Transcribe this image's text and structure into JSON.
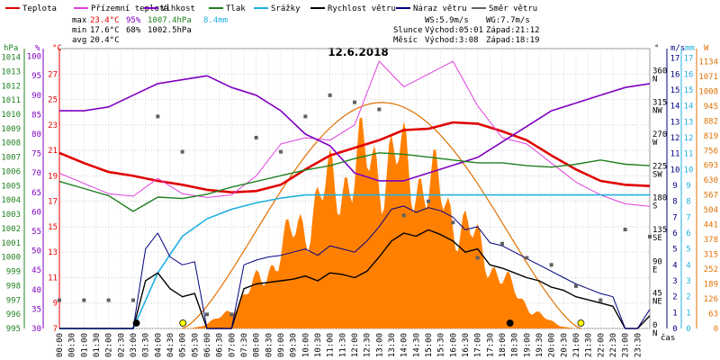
{
  "chart_data": {
    "type": "line",
    "title": "12.6.2018",
    "x_axis_label": "čas",
    "x_ticks": [
      "00:00",
      "00:30",
      "01:00",
      "01:30",
      "02:00",
      "02:30",
      "03:00",
      "03:30",
      "04:00",
      "04:30",
      "05:00",
      "05:30",
      "06:00",
      "06:30",
      "07:00",
      "07:30",
      "08:00",
      "08:30",
      "09:00",
      "09:30",
      "10:00",
      "10:30",
      "11:00",
      "11:30",
      "12:00",
      "12:30",
      "13:00",
      "13:30",
      "14:00",
      "14:30",
      "15:00",
      "15:30",
      "16:00",
      "16:30",
      "17:00",
      "17:30",
      "18:00",
      "18:30",
      "19:00",
      "19:30",
      "20:00",
      "20:30",
      "21:00",
      "21:30",
      "22:00",
      "22:30",
      "23:00",
      "23:30"
    ],
    "legend": [
      {
        "name": "Teplota",
        "color": "#e00000"
      },
      {
        "name": "Přízemní teplota",
        "color": "#e040e0"
      },
      {
        "name": "Vlhkost",
        "color": "#8000c0"
      },
      {
        "name": "Tlak",
        "color": "#208020"
      },
      {
        "name": "Srážky",
        "color": "#20b0e0"
      },
      {
        "name": "Rychlost větru",
        "color": "#000000"
      },
      {
        "name": "Náraz větru",
        "color": "#000080"
      },
      {
        "name": "Směr větru",
        "color": "#606060"
      }
    ],
    "stats": {
      "max_label": "max",
      "min_label": "min",
      "avg_label": "avg",
      "max_temp": "23.4°C",
      "max_hum": "95%",
      "max_press": "1007.4hPa",
      "precip": "8.4mm",
      "min_temp": "17.6°C",
      "min_hum": "68%",
      "min_press": "1002.5hPa",
      "avg_temp": "20.4°C"
    },
    "info": {
      "ws": "WS:5.9m/s",
      "wg": "WG:7.7m/s",
      "sun_label": "Slunce",
      "sun_rise": "Východ:05:01",
      "sun_set": "Západ:21:12",
      "moon_label": "Měsíc",
      "moon_rise": "Východ:3:08",
      "moon_set": "Západ:18:19"
    },
    "axes": {
      "hpa": {
        "label": "hPa",
        "ticks": [
          995,
          996,
          997,
          998,
          999,
          1000,
          1001,
          1002,
          1003,
          1004,
          1005,
          1006,
          1007,
          1008,
          1009,
          1010,
          1011,
          1012,
          1013,
          1014
        ]
      },
      "pct": {
        "label": "%",
        "ticks": [
          30,
          35,
          40,
          45,
          50,
          55,
          60,
          65,
          70,
          75,
          80,
          85,
          90,
          95,
          100
        ]
      },
      "temp": {
        "label": "°C",
        "ticks": [
          7,
          9,
          11,
          13,
          15,
          17,
          19,
          21,
          23,
          25,
          27
        ]
      },
      "deg": {
        "label": "°",
        "ticks": [
          "0",
          "45",
          "90",
          "135",
          "180",
          "225",
          "270",
          "315",
          "360"
        ],
        "dirs": [
          "N",
          "NE",
          "E",
          "SE",
          "S",
          "SW",
          "W",
          "NW",
          "N"
        ]
      },
      "ms": {
        "label": "m/s",
        "ticks": [
          0,
          1,
          2,
          3,
          4,
          5,
          6,
          7,
          8,
          9,
          10,
          11,
          12,
          13,
          14,
          15,
          16,
          17
        ]
      },
      "mm": {
        "label": "mm",
        "ticks": [
          0,
          1,
          2,
          3,
          4,
          5,
          6,
          7,
          8,
          9,
          10,
          11,
          12,
          13,
          14,
          15,
          16,
          17
        ]
      },
      "wm2": {
        "label": "W",
        "ticks": [
          0,
          63,
          126,
          189,
          252,
          315,
          378,
          441,
          504,
          567,
          630,
          693,
          756,
          819,
          882,
          945,
          1008,
          1071,
          1134
        ]
      }
    },
    "series": [
      {
        "name": "Teplota",
        "unit": "°C",
        "x": [
          0,
          1,
          2,
          3,
          4,
          5,
          6,
          7,
          8,
          9,
          10,
          11,
          12,
          13,
          14,
          15,
          16,
          17,
          18,
          19,
          20,
          21,
          22,
          23,
          24
        ],
        "values": [
          20.8,
          20.0,
          19.3,
          19.0,
          18.6,
          18.3,
          17.9,
          17.7,
          17.8,
          18.3,
          19.5,
          20.6,
          21.2,
          21.8,
          22.6,
          22.7,
          23.2,
          23.1,
          22.5,
          21.8,
          20.6,
          19.5,
          18.6,
          18.3,
          18.2
        ]
      },
      {
        "name": "Přízemní teplota",
        "unit": "°C",
        "x": [
          0,
          1,
          2,
          3,
          4,
          5,
          6,
          7,
          8,
          9,
          10,
          11,
          12,
          13,
          14,
          15,
          16,
          17,
          18,
          19,
          20,
          21,
          22,
          23,
          24
        ],
        "values": [
          19.2,
          18.4,
          17.6,
          17.4,
          18.8,
          17.6,
          17.3,
          17.5,
          19.0,
          21.5,
          22.0,
          21.8,
          23.0,
          28.0,
          26.0,
          27.0,
          28.0,
          24.5,
          22.0,
          21.5,
          20.0,
          18.5,
          17.5,
          16.8,
          16.6
        ]
      },
      {
        "name": "Vlhkost",
        "unit": "%",
        "x": [
          0,
          1,
          2,
          3,
          4,
          5,
          6,
          7,
          8,
          9,
          10,
          11,
          12,
          13,
          14,
          15,
          16,
          17,
          18,
          19,
          20,
          21,
          22,
          23,
          24
        ],
        "values": [
          86,
          86,
          87,
          90,
          93,
          94,
          95,
          92,
          90,
          86,
          80,
          77,
          70,
          68,
          68,
          70,
          72,
          74,
          78,
          82,
          86,
          88,
          90,
          92,
          93
        ]
      },
      {
        "name": "Tlak",
        "unit": "hPa",
        "x": [
          0,
          1,
          2,
          3,
          4,
          5,
          6,
          7,
          8,
          9,
          10,
          11,
          12,
          13,
          14,
          15,
          16,
          17,
          18,
          19,
          20,
          21,
          22,
          23,
          24
        ],
        "values": [
          1005.3,
          1004.8,
          1004.3,
          1003.2,
          1004.2,
          1004.1,
          1004.4,
          1004.9,
          1005.3,
          1005.7,
          1006.1,
          1006.4,
          1006.9,
          1007.3,
          1007.2,
          1007.0,
          1006.8,
          1006.6,
          1006.6,
          1006.4,
          1006.3,
          1006.5,
          1006.8,
          1006.5,
          1006.4
        ]
      },
      {
        "name": "Srážky",
        "unit": "mm",
        "x": [
          0,
          3,
          4,
          5,
          6,
          7,
          8,
          9,
          10,
          11,
          12,
          24
        ],
        "values": [
          0,
          0,
          3.5,
          5.8,
          6.9,
          7.5,
          7.9,
          8.2,
          8.4,
          8.4,
          8.4,
          8.4
        ]
      },
      {
        "name": "Rychlost větru",
        "unit": "m/s",
        "x": [
          0,
          2,
          3,
          3.5,
          4,
          4.5,
          5,
          5.5,
          6,
          6.5,
          7,
          7.5,
          8,
          8.5,
          9,
          9.5,
          10,
          10.5,
          11,
          11.5,
          12,
          12.5,
          13,
          13.5,
          14,
          14.5,
          15,
          15.5,
          16,
          16.5,
          17,
          17.5,
          18,
          18.5,
          19,
          19.5,
          20,
          20.5,
          21,
          21.5,
          22,
          22.5,
          23,
          23.5,
          24
        ],
        "values": [
          0,
          0,
          0,
          3,
          3.5,
          2.5,
          2.0,
          2.2,
          0,
          0,
          0,
          2.5,
          2.8,
          2.9,
          3.0,
          3.1,
          3.3,
          3.0,
          3.5,
          3.4,
          3.2,
          3.6,
          4.5,
          5.5,
          6.0,
          5.8,
          6.2,
          5.9,
          5.5,
          4.8,
          5.0,
          4.0,
          3.8,
          3.5,
          3.2,
          3.0,
          2.6,
          2.4,
          2.0,
          1.8,
          1.6,
          1.4,
          0,
          0,
          0.8
        ]
      },
      {
        "name": "Náraz větru",
        "unit": "m/s",
        "x": [
          0,
          2,
          3,
          3.5,
          4,
          4.5,
          5,
          5.5,
          6,
          6.5,
          7,
          7.5,
          8,
          8.5,
          9,
          9.5,
          10,
          10.5,
          11,
          11.5,
          12,
          12.5,
          13,
          13.5,
          14,
          14.5,
          15,
          15.5,
          16,
          16.5,
          17,
          17.5,
          18,
          18.5,
          19,
          19.5,
          20,
          20.5,
          21,
          21.5,
          22,
          22.5,
          23,
          23.5,
          24
        ],
        "values": [
          0,
          0,
          0,
          5.0,
          6.0,
          4.5,
          4.0,
          4.2,
          0,
          0,
          0,
          4.0,
          4.3,
          4.5,
          4.6,
          4.8,
          5.0,
          4.6,
          5.2,
          5.0,
          4.8,
          5.5,
          6.4,
          7.5,
          7.7,
          7.3,
          7.6,
          7.4,
          7.0,
          6.2,
          6.4,
          5.4,
          5.2,
          4.8,
          4.4,
          4.0,
          3.6,
          3.2,
          2.8,
          2.5,
          2.2,
          2.0,
          0,
          0,
          1.2
        ]
      },
      {
        "name": "Směr větru",
        "unit": "°",
        "x": [
          0,
          1,
          2,
          3,
          4,
          5,
          6,
          7,
          8,
          9,
          10,
          11,
          12,
          13,
          14,
          15,
          16,
          17,
          18,
          19,
          20,
          21,
          22,
          23,
          24
        ],
        "values": [
          40,
          40,
          40,
          40,
          300,
          250,
          20,
          20,
          270,
          250,
          300,
          330,
          320,
          310,
          160,
          180,
          150,
          100,
          120,
          100,
          90,
          60,
          40,
          140,
          130
        ]
      }
    ],
    "solar": {
      "name": "Solární radiace",
      "unit": "W",
      "sunrise_h": 5.0,
      "sunset_h": 21.2,
      "peak_h": 13.2,
      "peak": 950
    },
    "solar_theoretical": {
      "peak": 960
    },
    "ylim": {
      "temp": [
        7,
        29
      ],
      "hpa": [
        995,
        1014.6
      ],
      "pct": [
        30,
        102
      ],
      "ms": [
        0,
        17.6
      ],
      "mm": [
        0,
        17.6
      ],
      "deg": [
        0,
        396
      ],
      "wm2": [
        0,
        1189
      ]
    }
  }
}
